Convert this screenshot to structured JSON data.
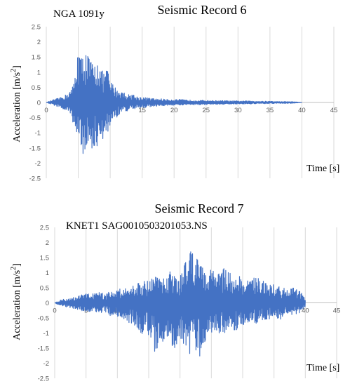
{
  "chart_data": [
    {
      "type": "line",
      "title": "Seismic Record 6",
      "subtitle": "NGA 1091y",
      "xlabel": "Time [s]",
      "ylabel_prefix": "Acceleration [m/s",
      "ylabel_sup": "2",
      "ylabel_suffix": "]",
      "xlim": [
        0,
        45
      ],
      "ylim": [
        -2.5,
        2.5
      ],
      "x_ticks": [
        0,
        5,
        10,
        15,
        20,
        25,
        30,
        35,
        40,
        45
      ],
      "y_ticks": [
        2.5,
        2,
        1.5,
        1,
        0.5,
        0,
        -0.5,
        -1,
        -1.5,
        -2,
        -2.5
      ],
      "grid": "vertical",
      "line_color": "#4472C4",
      "series": [
        {
          "x": [
            0,
            1,
            2,
            3,
            4,
            4.5,
            5,
            5.5,
            6,
            6.5,
            7,
            7.5,
            8,
            8.5,
            9,
            9.5,
            10,
            10.5,
            11,
            11.5,
            12,
            12.5,
            13,
            13.5,
            14,
            15,
            16,
            17,
            18,
            19,
            20,
            21,
            22,
            23,
            24,
            25,
            26,
            27,
            28,
            29,
            30,
            31,
            32,
            33,
            34,
            35,
            36,
            37,
            38,
            39,
            40
          ],
          "y": [
            0,
            0.08,
            0.15,
            0.25,
            0.45,
            0.9,
            1.95,
            1.5,
            1.85,
            1.6,
            1.4,
            1.2,
            1.55,
            1.1,
            1.0,
            1.2,
            0.7,
            0.6,
            0.45,
            0.4,
            0.35,
            0.3,
            0.25,
            0.3,
            0.2,
            0.18,
            0.15,
            0.12,
            0.12,
            0.1,
            0.1,
            0.1,
            0.08,
            0.08,
            0.07,
            0.07,
            0.06,
            0.06,
            0.06,
            0.05,
            0.05,
            0.05,
            0.05,
            0.04,
            0.04,
            0.04,
            0.03,
            0.03,
            0.03,
            0.02,
            0
          ],
          "y_neg": [
            0,
            -0.08,
            -0.15,
            -0.3,
            -0.5,
            -1.0,
            -1.4,
            -1.65,
            -1.75,
            -1.55,
            -1.5,
            -1.7,
            -1.45,
            -1.8,
            -1.0,
            -1.2,
            -0.75,
            -0.55,
            -0.5,
            -0.4,
            -0.3,
            -0.3,
            -0.25,
            -0.3,
            -0.2,
            -0.18,
            -0.15,
            -0.13,
            -0.12,
            -0.1,
            -0.1,
            -0.1,
            -0.08,
            -0.08,
            -0.07,
            -0.07,
            -0.06,
            -0.06,
            -0.06,
            -0.05,
            -0.05,
            -0.05,
            -0.05,
            -0.04,
            -0.04,
            -0.04,
            -0.03,
            -0.03,
            -0.03,
            -0.02,
            0
          ]
        }
      ]
    },
    {
      "type": "line",
      "title": "Seismic Record 7",
      "subtitle": "KNET1 SAG0010503201053.NS",
      "xlabel": "Time [s]",
      "ylabel_prefix": "Acceleration [m/s",
      "ylabel_sup": "2",
      "ylabel_suffix": "]",
      "xlim": [
        0,
        45
      ],
      "ylim": [
        -2.5,
        2.5
      ],
      "x_ticks": [
        0,
        5,
        10,
        15,
        20,
        25,
        30,
        35,
        40,
        45
      ],
      "y_ticks": [
        2.5,
        2,
        1.5,
        1,
        0.5,
        0,
        -0.5,
        -1,
        -1.5,
        -2,
        -2.5
      ],
      "grid": "vertical",
      "line_color": "#4472C4",
      "series": [
        {
          "x": [
            0,
            1,
            2,
            3,
            4,
            5,
            6,
            7,
            8,
            9,
            10,
            11,
            12,
            13,
            14,
            15,
            16,
            17,
            18,
            19,
            20,
            21,
            21.5,
            22,
            22.5,
            23,
            23.5,
            24,
            25,
            26,
            27,
            28,
            29,
            30,
            31,
            32,
            33,
            34,
            35,
            36,
            37,
            38,
            39,
            40
          ],
          "y": [
            0,
            0.1,
            0.15,
            0.2,
            0.25,
            0.3,
            0.3,
            0.35,
            0.3,
            0.4,
            0.45,
            0.5,
            0.55,
            0.6,
            0.8,
            0.7,
            0.9,
            0.8,
            1.0,
            1.1,
            0.9,
            1.4,
            2.0,
            1.85,
            1.6,
            1.3,
            1.2,
            1.0,
            1.1,
            1.0,
            1.2,
            1.05,
            0.9,
            0.85,
            0.7,
            1.0,
            0.8,
            0.6,
            0.6,
            0.55,
            0.45,
            0.5,
            0.4,
            0.2
          ],
          "y_neg": [
            0,
            -0.1,
            -0.15,
            -0.2,
            -0.25,
            -0.3,
            -0.35,
            -0.3,
            -0.35,
            -0.45,
            -0.5,
            -0.55,
            -0.7,
            -0.8,
            -1.1,
            -1.1,
            -1.7,
            -1.3,
            -1.2,
            -1.5,
            -1.6,
            -1.45,
            -1.8,
            -1.4,
            -1.9,
            -1.95,
            -1.5,
            -1.3,
            -1.2,
            -1.0,
            -1.0,
            -0.95,
            -0.9,
            -0.8,
            -0.7,
            -0.7,
            -0.6,
            -0.55,
            -0.5,
            -0.55,
            -0.4,
            -0.4,
            -0.35,
            -0.2
          ]
        }
      ]
    }
  ]
}
